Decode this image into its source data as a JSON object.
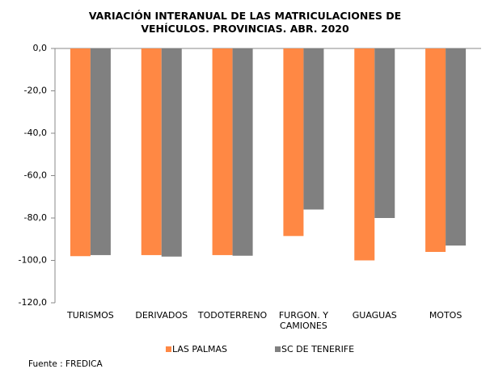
{
  "chart_data": {
    "type": "bar",
    "title": "VARIACIÓN INTERANUAL DE LAS MATRICULACIONES DE VEHÍCULOS. PROVINCIAS. ABR. 2020",
    "categories": [
      "TURISMOS",
      "DERIVADOS",
      "TODOTERRENO",
      "FURGON. Y CAMIONES",
      "GUAGUAS",
      "MOTOS"
    ],
    "series": [
      {
        "name": "LAS PALMAS",
        "color": "#ff8844",
        "values": [
          -98,
          -97.5,
          -97.5,
          -88.5,
          -100,
          -96
        ]
      },
      {
        "name": "SC DE TENERIFE",
        "color": "#808080",
        "values": [
          -97.5,
          -98.2,
          -97.8,
          -76,
          -80,
          -93
        ]
      }
    ],
    "ylim": [
      -120,
      0
    ],
    "yticks": [
      {
        "value": 0,
        "label": "0,0"
      },
      {
        "value": -20,
        "label": "-20,0"
      },
      {
        "value": -40,
        "label": "-40,0"
      },
      {
        "value": -60,
        "label": "-60,0"
      },
      {
        "value": -80,
        "label": "-80,0"
      },
      {
        "value": -100,
        "label": "-100,0"
      },
      {
        "value": -120,
        "label": "-120,0"
      }
    ],
    "legend": "bottom",
    "source": "Fuente : FREDICA"
  }
}
